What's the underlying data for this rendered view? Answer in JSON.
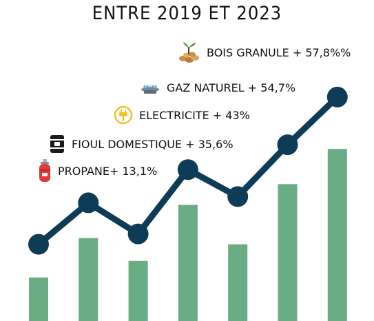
{
  "title": "ENTRE 2019 ET 2023",
  "legend": [
    {
      "label": "BOIS GRANULE + 57,8%%",
      "icon": "wood-pellets-icon"
    },
    {
      "label": "GAZ NATUREL + 54,7%",
      "icon": "gas-burner-icon"
    },
    {
      "label": "ELECTRICITE + 43%",
      "icon": "electric-plug-icon"
    },
    {
      "label": "FIOUL DOMESTIQUE + 35,6%",
      "icon": "oil-barrel-icon"
    },
    {
      "label": "PROPANE+ 13,1%",
      "icon": "propane-bottle-icon"
    }
  ],
  "colors": {
    "bar": "#6aac84",
    "line": "#0e3b55",
    "text": "#111111"
  },
  "chart_data": {
    "type": "bar",
    "title": "ENTRE 2019 ET 2023",
    "xlabel": "",
    "ylabel": "",
    "grid": false,
    "ylim": [
      0,
      100
    ],
    "values": [
      21,
      40,
      29,
      56,
      37,
      66,
      83
    ],
    "line_overlay": {
      "type": "line",
      "values": [
        37,
        57,
        42,
        73,
        60,
        85,
        108
      ]
    }
  }
}
